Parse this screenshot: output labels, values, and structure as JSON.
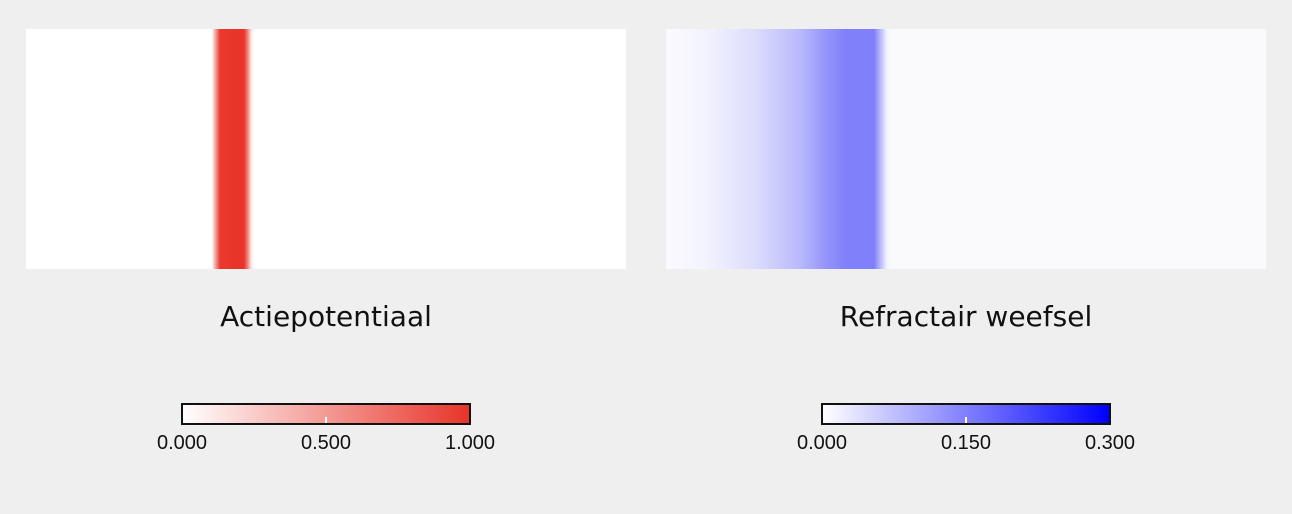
{
  "panels": [
    {
      "title": "Actiepotentiaal",
      "colorbar": {
        "min_label": "0.000",
        "mid_label": "0.500",
        "max_label": "1.000",
        "color_start": "#ffffff",
        "color_end": "#e8342a"
      }
    },
    {
      "title": "Refractair weefsel",
      "colorbar": {
        "min_label": "0.000",
        "mid_label": "0.150",
        "max_label": "0.300",
        "color_start": "#ffffff",
        "color_end": "#0000ff"
      }
    }
  ],
  "colors": {
    "background": "#efefef",
    "action_potential": "#e8342a",
    "refractory": "#8080fa"
  }
}
